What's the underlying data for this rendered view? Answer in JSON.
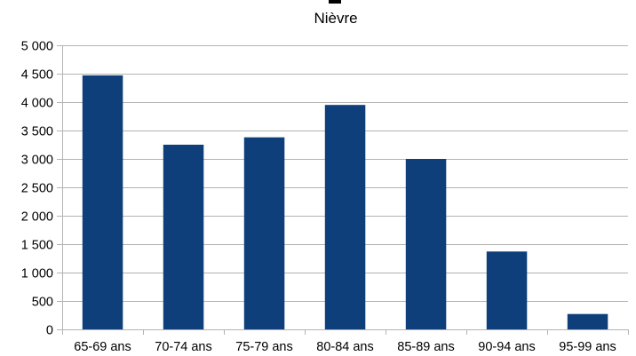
{
  "chart_data": {
    "type": "bar",
    "subtitle": "Nièvre",
    "categories": [
      "65-69 ans",
      "70-74 ans",
      "75-79 ans",
      "80-84 ans",
      "85-89 ans",
      "90-94 ans",
      "95-99 ans"
    ],
    "values": [
      4470,
      3250,
      3380,
      3950,
      3000,
      1370,
      270
    ],
    "ylim": [
      0,
      5000
    ],
    "yticks": [
      0,
      500,
      1000,
      1500,
      2000,
      2500,
      3000,
      3500,
      4000,
      4500,
      5000
    ],
    "ytick_labels": [
      "0",
      "500",
      "1 000",
      "1 500",
      "2 000",
      "2 500",
      "3 000",
      "3 500",
      "4 000",
      "4 500",
      "5 000"
    ],
    "xlabel": "",
    "ylabel": "",
    "grid": true,
    "legend": "none",
    "bar_color": "#0e3f7a",
    "grid_color": "#b3b3b3",
    "axis_color": "#b3b3b3"
  }
}
